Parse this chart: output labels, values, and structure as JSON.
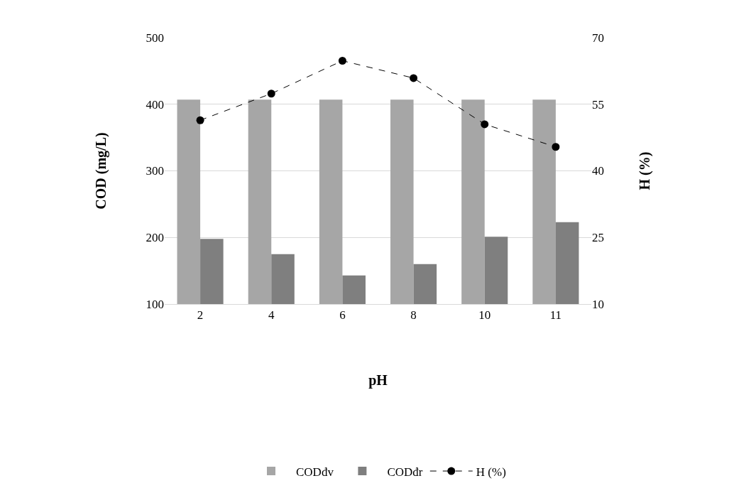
{
  "chart_data": {
    "type": "bar",
    "xlabel": "pH",
    "ylabel": "COD (mg/L)",
    "y2label": "H (%)",
    "categories": [
      "2",
      "4",
      "6",
      "8",
      "10",
      "11"
    ],
    "series": [
      {
        "name": "CODđv",
        "color": "#a6a6a6",
        "values": [
          407,
          407,
          407,
          407,
          407,
          407
        ]
      },
      {
        "name": "CODđr",
        "color": "#7f7f7f",
        "values": [
          198,
          175,
          143,
          160,
          201,
          223
        ]
      },
      {
        "name": "H (%)",
        "type": "line",
        "axis": "y2",
        "color": "#000000",
        "marker": "circle",
        "line_style": "dashed",
        "values": [
          51.4,
          57.4,
          64.8,
          60.9,
          50.5,
          45.4
        ]
      }
    ],
    "ylim": [
      100,
      500
    ],
    "yticks": [
      100,
      200,
      300,
      400,
      500
    ],
    "y2lim": [
      10,
      70
    ],
    "y2ticks": [
      10,
      25,
      40,
      55,
      70
    ],
    "grid": "y",
    "legend": "bottom"
  }
}
